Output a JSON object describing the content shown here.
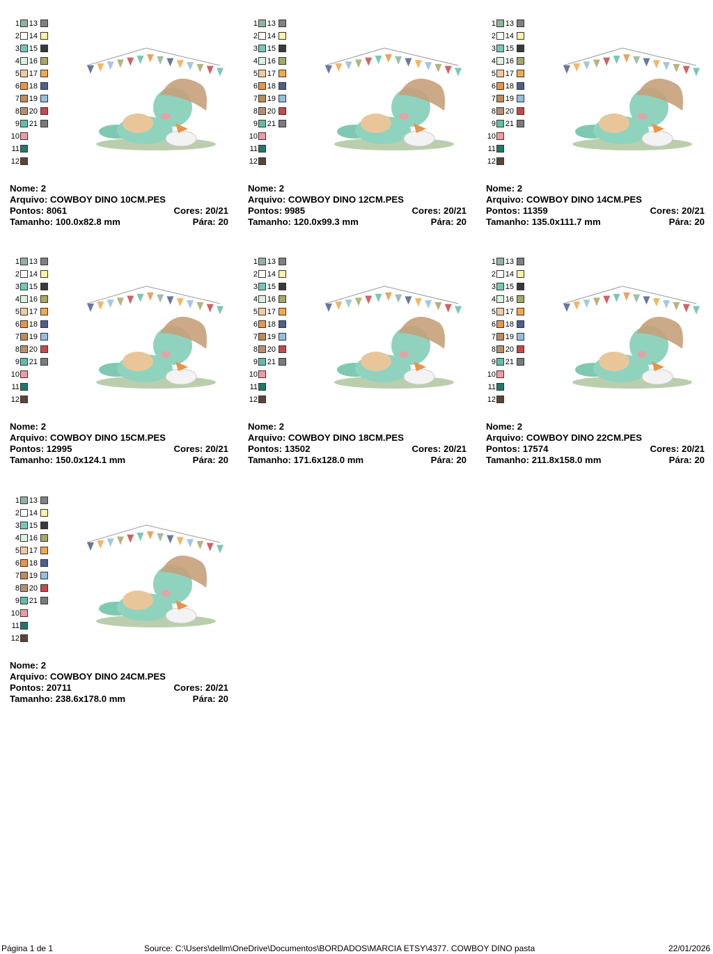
{
  "labels": {
    "name": "Nome:",
    "file": "Arquivo:",
    "stitches": "Pontos:",
    "colors": "Cores:",
    "size": "Tamanho:",
    "stops": "Pára:"
  },
  "palette_colors": [
    {
      "n": "1",
      "color": "#8fb39e"
    },
    {
      "n": "2",
      "color": "#ffffff"
    },
    {
      "n": "3",
      "color": "#74c8b8"
    },
    {
      "n": "4",
      "color": "#d9f2df"
    },
    {
      "n": "5",
      "color": "#f2c9a0"
    },
    {
      "n": "6",
      "color": "#e8944a"
    },
    {
      "n": "7",
      "color": "#c08a5a"
    },
    {
      "n": "8",
      "color": "#b88f6e"
    },
    {
      "n": "9",
      "color": "#5fbfa6"
    },
    {
      "n": "10",
      "color": "#f39aa0"
    },
    {
      "n": "11",
      "color": "#1f7a6a"
    },
    {
      "n": "12",
      "color": "#5b4636"
    },
    {
      "n": "13",
      "color": "#808080"
    },
    {
      "n": "14",
      "color": "#fbf3a3"
    },
    {
      "n": "15",
      "color": "#3a3a3a"
    },
    {
      "n": "16",
      "color": "#a8a868"
    },
    {
      "n": "17",
      "color": "#f2a94a"
    },
    {
      "n": "18",
      "color": "#4e5f8c"
    },
    {
      "n": "19",
      "color": "#93bedc"
    },
    {
      "n": "20",
      "color": "#c9484a"
    },
    {
      "n": "21",
      "color": "#7b7b7b"
    }
  ],
  "designs": [
    {
      "name": "2",
      "file": "COWBOY DINO 10CM.PES",
      "stitches": "8061",
      "colors": "20/21",
      "size": "100.0x82.8 mm",
      "stops": "20"
    },
    {
      "name": "2",
      "file": "COWBOY DINO 12CM.PES",
      "stitches": "9985",
      "colors": "20/21",
      "size": "120.0x99.3 mm",
      "stops": "20"
    },
    {
      "name": "2",
      "file": "COWBOY DINO 14CM.PES",
      "stitches": "11359",
      "colors": "20/21",
      "size": "135.0x111.7 mm",
      "stops": "20"
    },
    {
      "name": "2",
      "file": "COWBOY DINO 15CM.PES",
      "stitches": "12995",
      "colors": "20/21",
      "size": "150.0x124.1 mm",
      "stops": "20"
    },
    {
      "name": "2",
      "file": "COWBOY DINO 18CM.PES",
      "stitches": "13502",
      "colors": "20/21",
      "size": "171.6x128.0 mm",
      "stops": "20"
    },
    {
      "name": "2",
      "file": "COWBOY DINO 22CM.PES",
      "stitches": "17574",
      "colors": "20/21",
      "size": "211.8x158.0 mm",
      "stops": "20"
    },
    {
      "name": "2",
      "file": "COWBOY DINO 24CM.PES",
      "stitches": "20711",
      "colors": "20/21",
      "size": "238.6x178.0 mm",
      "stops": "20"
    }
  ],
  "footer": {
    "page": "Página 1 de 1",
    "source": "Source: C:\\Users\\dellm\\OneDrive\\Documentos\\BORDADOS\\MARCIA ETSY\\4377. COWBOY DINO pasta",
    "date": "22/01/2026"
  },
  "flag_colors": [
    "#4e5f8c",
    "#f2a94a",
    "#93bedc",
    "#a8a868",
    "#c9484a",
    "#5fbfa6",
    "#e8944a",
    "#8fb39e"
  ]
}
